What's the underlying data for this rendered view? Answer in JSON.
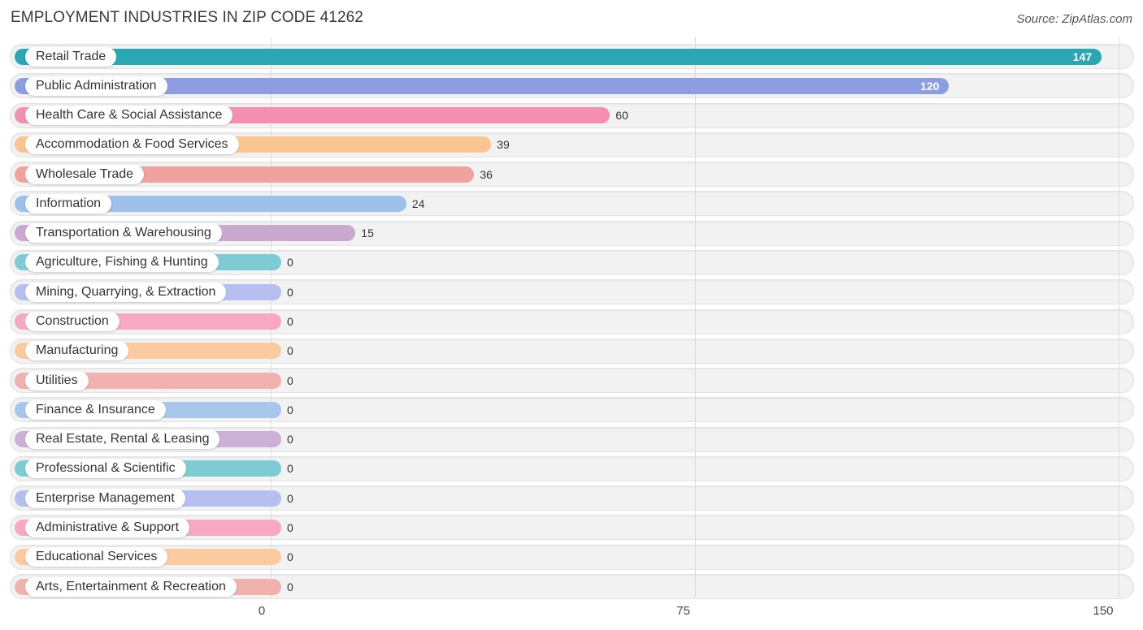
{
  "chart_data": {
    "type": "bar",
    "orientation": "horizontal",
    "title": "EMPLOYMENT INDUSTRIES IN ZIP CODE 41262",
    "source": "Source: ZipAtlas.com",
    "categories": [
      "Retail Trade",
      "Public Administration",
      "Health Care & Social Assistance",
      "Accommodation & Food Services",
      "Wholesale Trade",
      "Information",
      "Transportation & Warehousing",
      "Agriculture, Fishing & Hunting",
      "Mining, Quarrying, & Extraction",
      "Construction",
      "Manufacturing",
      "Utilities",
      "Finance & Insurance",
      "Real Estate, Rental & Leasing",
      "Professional & Scientific",
      "Enterprise Management",
      "Administrative & Support",
      "Educational Services",
      "Arts, Entertainment & Recreation"
    ],
    "values": [
      147,
      120,
      60,
      39,
      36,
      24,
      15,
      0,
      0,
      0,
      0,
      0,
      0,
      0,
      0,
      0,
      0,
      0,
      0
    ],
    "colors": [
      "#2ba7b3",
      "#8c9de2",
      "#f48fb1",
      "#fbc591",
      "#f0a39d",
      "#9dc1ea",
      "#c9a9d0",
      "#7ecbd3",
      "#b6bff0",
      "#f7a8c4",
      "#fbcb9f",
      "#f1b2ad",
      "#a9c6ec",
      "#cdb0d5",
      "#7ecbd3",
      "#b6bff0",
      "#f7a8c4",
      "#fbcb9f",
      "#f1b2ad"
    ],
    "xlim": [
      0,
      150
    ],
    "xticks": [
      0,
      75,
      150
    ],
    "grid": true,
    "legend": "none"
  }
}
